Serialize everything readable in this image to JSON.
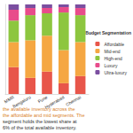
{
  "chart_data": {
    "type": "bar",
    "stacked": true,
    "categories": [
      "MMR",
      "Bengaluru",
      "Pune",
      "Hyderabad",
      "Chennai"
    ],
    "series": [
      {
        "name": "Affordable",
        "color": "#e8564a",
        "values": [
          30,
          18,
          25,
          12,
          20
        ]
      },
      {
        "name": "Mid-end",
        "color": "#f5a742",
        "values": [
          28,
          42,
          40,
          37,
          38
        ]
      },
      {
        "name": "High-end",
        "color": "#8dc63f",
        "values": [
          24,
          28,
          25,
          42,
          30
        ]
      },
      {
        "name": "Luxury",
        "color": "#e84c8b",
        "values": [
          12,
          8,
          6,
          6,
          8
        ]
      },
      {
        "name": "Ultra-luxury",
        "color": "#7b4fa0",
        "values": [
          6,
          4,
          4,
          3,
          4
        ]
      }
    ],
    "ylim": [
      0,
      100
    ],
    "tick_labels": "x",
    "grid": false,
    "legend": "right",
    "legend_title": "Budget Segmentation",
    "annotations": [
      "the available inventory across the",
      "the affordable and mid segments. The",
      "segment holds the lowest share at",
      "6% of the total available inventory."
    ]
  }
}
